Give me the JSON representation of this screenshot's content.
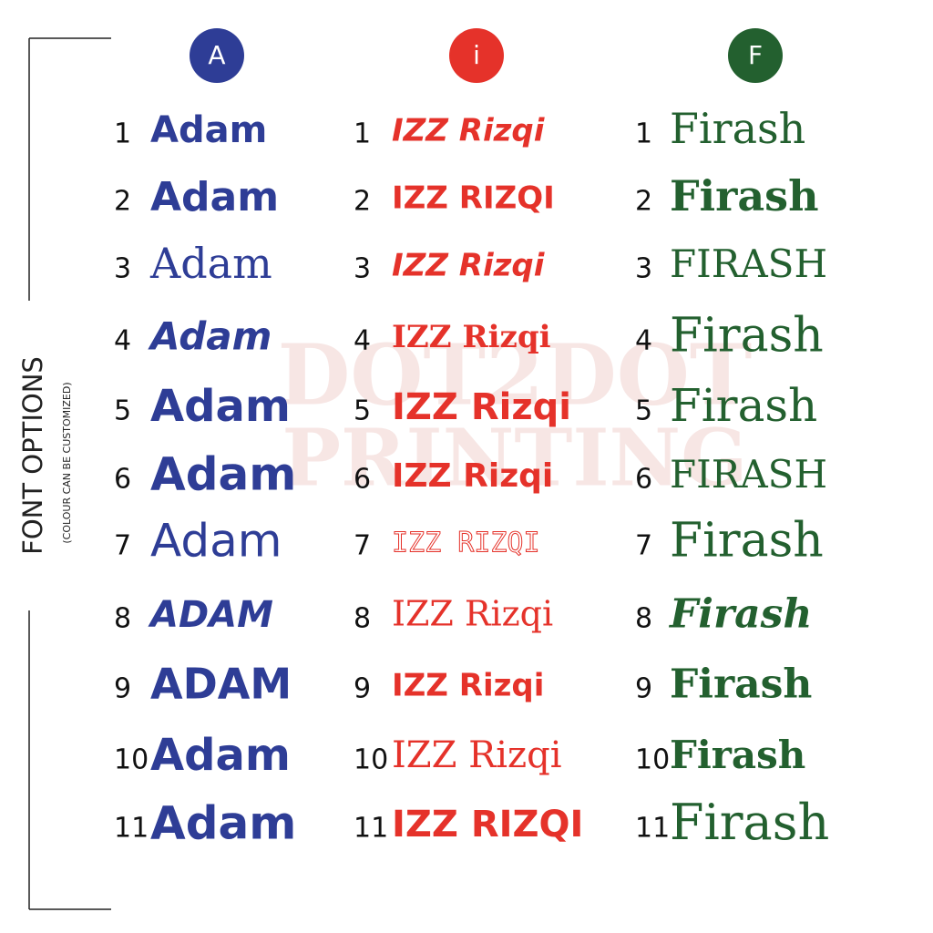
{
  "side_label": {
    "title": "FONT OPTIONS",
    "subtitle": "(COLOUR CAN BE CUSTOMIZED)"
  },
  "watermark": {
    "line1": "DOT2DOT",
    "line2": "PRINTING"
  },
  "columns": [
    {
      "badge": "A",
      "color": "#2e3d96",
      "items": [
        {
          "number": "1",
          "text": "Adam"
        },
        {
          "number": "2",
          "text": "Adam"
        },
        {
          "number": "3",
          "text": "Adam"
        },
        {
          "number": "4",
          "text": "Adam"
        },
        {
          "number": "5",
          "text": "Adam"
        },
        {
          "number": "6",
          "text": "Adam"
        },
        {
          "number": "7",
          "text": "Adam"
        },
        {
          "number": "8",
          "text": "ADAM"
        },
        {
          "number": "9",
          "text": "ADAM"
        },
        {
          "number": "10",
          "text": "Adam"
        },
        {
          "number": "11",
          "text": "Adam"
        }
      ]
    },
    {
      "badge": "i",
      "color": "#e5322a",
      "items": [
        {
          "number": "1",
          "text": "IZZ Rizqi"
        },
        {
          "number": "2",
          "text": "IZZ RIZQI"
        },
        {
          "number": "3",
          "text": "IZZ Rizqi"
        },
        {
          "number": "4",
          "text": "IZZ Rizqi"
        },
        {
          "number": "5",
          "text": "IZZ Rizqi"
        },
        {
          "number": "6",
          "text": "IZZ Rizqi"
        },
        {
          "number": "7",
          "text": "IZZ RIZQI"
        },
        {
          "number": "8",
          "text": "IZZ Rizqi"
        },
        {
          "number": "9",
          "text": "IZZ Rizqi"
        },
        {
          "number": "10",
          "text": "IZZ Rizqi"
        },
        {
          "number": "11",
          "text": "IZZ RIZQI"
        }
      ]
    },
    {
      "badge": "F",
      "color": "#23602f",
      "items": [
        {
          "number": "1",
          "text": "Firash"
        },
        {
          "number": "2",
          "text": "Firash"
        },
        {
          "number": "3",
          "text": "FIRASH"
        },
        {
          "number": "4",
          "text": "Firash"
        },
        {
          "number": "5",
          "text": "Firash"
        },
        {
          "number": "6",
          "text": "FIRASH"
        },
        {
          "number": "7",
          "text": "Firash"
        },
        {
          "number": "8",
          "text": "Firash"
        },
        {
          "number": "9",
          "text": "Firash"
        },
        {
          "number": "10",
          "text": "Firash"
        },
        {
          "number": "11",
          "text": "Firash"
        }
      ]
    }
  ]
}
